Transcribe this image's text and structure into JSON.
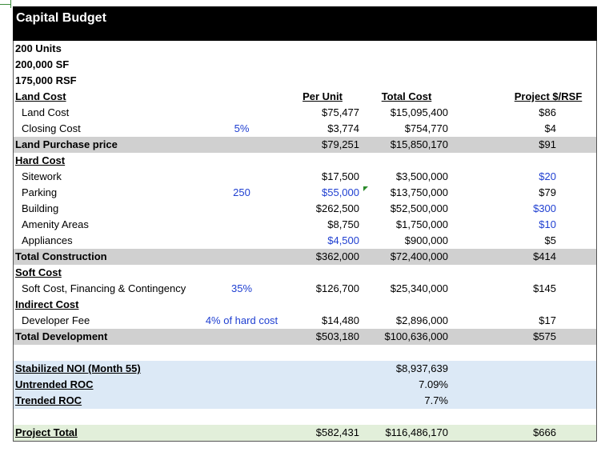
{
  "title": "Capital Budget",
  "summary": [
    "200 Units",
    "200,000 SF",
    "175,000 RSF"
  ],
  "headers": {
    "per_unit": "Per Unit",
    "total_cost": "Total Cost",
    "project_rsf": "Project $/RSF"
  },
  "land": {
    "heading": "Land Cost",
    "rows": [
      {
        "label": "Land Cost",
        "input": "",
        "per_unit": "$75,477",
        "total": "$15,095,400",
        "rsf": "$86"
      },
      {
        "label": "Closing Cost",
        "input": "5%",
        "per_unit": "$3,774",
        "total": "$754,770",
        "rsf": "$4"
      }
    ],
    "subtotal": {
      "label": "Land Purchase price",
      "per_unit": "$79,251",
      "total": "$15,850,170",
      "rsf": "$91"
    }
  },
  "hard": {
    "heading": "Hard Cost",
    "rows": [
      {
        "label": "Sitework",
        "input": "",
        "per_unit": "$17,500",
        "total": "$3,500,000",
        "rsf": "$20"
      },
      {
        "label": "Parking",
        "input": "250",
        "per_unit": "$55,000",
        "total": "$13,750,000",
        "rsf": "$79"
      },
      {
        "label": "Building",
        "input": "",
        "per_unit": "$262,500",
        "total": "$52,500,000",
        "rsf": "$300"
      },
      {
        "label": "Amenity Areas",
        "input": "",
        "per_unit": "$8,750",
        "total": "$1,750,000",
        "rsf": "$10"
      },
      {
        "label": "Appliances",
        "input": "",
        "per_unit": "$4,500",
        "total": "$900,000",
        "rsf": "$5"
      }
    ],
    "subtotal": {
      "label": "Total Construction",
      "per_unit": "$362,000",
      "total": "$72,400,000",
      "rsf": "$414"
    }
  },
  "soft": {
    "heading": "Soft Cost",
    "row": {
      "label": "Soft Cost, Financing & Contingency",
      "input": "35%",
      "per_unit": "$126,700",
      "total": "$25,340,000",
      "rsf": "$145"
    }
  },
  "indirect": {
    "heading": "Indirect Cost",
    "row": {
      "label": "Developer Fee",
      "input": "4% of hard cost",
      "per_unit": "$14,480",
      "total": "$2,896,000",
      "rsf": "$17"
    },
    "subtotal": {
      "label": "Total Development",
      "per_unit": "$503,180",
      "total": "$100,636,000",
      "rsf": "$575"
    }
  },
  "returns": [
    {
      "label": "Stabilized NOI (Month 55)",
      "total": "$8,937,639"
    },
    {
      "label": "Untrended ROC",
      "total": "7.09%"
    },
    {
      "label": "Trended ROC",
      "total": "7.7%"
    }
  ],
  "project_total": {
    "label": "Project Total",
    "per_unit": "$582,431",
    "total": "$116,486,170",
    "rsf": "$666"
  }
}
